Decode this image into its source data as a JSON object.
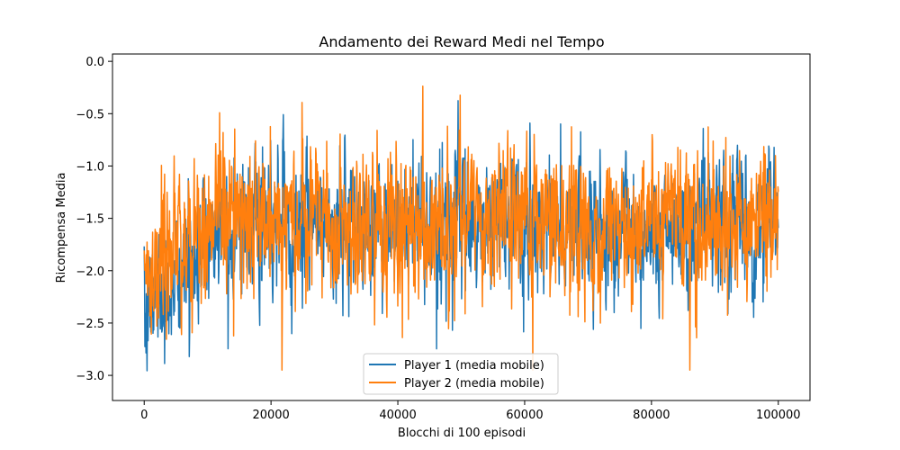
{
  "chart_data": {
    "type": "line",
    "title": "Andamento dei Reward Medi nel Tempo",
    "xlabel": "Blocchi di 100 episodi",
    "ylabel": "Ricompensa Media",
    "xlim": [
      -5000,
      105000
    ],
    "ylim": [
      -3.24,
      0.07
    ],
    "x_ticks": [
      0,
      20000,
      40000,
      60000,
      80000,
      100000
    ],
    "x_tick_labels": [
      "0",
      "20000",
      "40000",
      "60000",
      "80000",
      "100000"
    ],
    "y_ticks": [
      0.0,
      -0.5,
      -1.0,
      -1.5,
      -2.0,
      -2.5,
      -3.0
    ],
    "y_tick_labels": [
      "0.0",
      "−0.5",
      "−1.0",
      "−1.5",
      "−2.0",
      "−2.5",
      "−3.0"
    ],
    "grid": false,
    "legend_position": "lower-center",
    "series": [
      {
        "name": "Player 1 (media mobile)",
        "color": "#1f77b4",
        "x": [
          0,
          2000,
          4000,
          6000,
          8000,
          10000,
          12000,
          14000,
          16000,
          18000,
          20000,
          22000,
          24000,
          26000,
          28000,
          30000,
          32000,
          34000,
          36000,
          38000,
          40000,
          42000,
          44000,
          46000,
          48000,
          50000,
          52000,
          54000,
          56000,
          58000,
          60000,
          62000,
          64000,
          66000,
          68000,
          70000,
          72000,
          74000,
          76000,
          78000,
          80000,
          82000,
          84000,
          86000,
          88000,
          90000,
          92000,
          94000,
          96000,
          98000,
          100000
        ],
        "y": [
          -2.6,
          -2.1,
          -2.2,
          -1.9,
          -1.9,
          -1.7,
          -1.5,
          -1.6,
          -1.5,
          -1.6,
          -1.6,
          -1.5,
          -1.6,
          -1.5,
          -1.6,
          -1.7,
          -1.5,
          -1.7,
          -1.6,
          -1.5,
          -1.6,
          -1.6,
          -1.5,
          -1.6,
          -1.6,
          -1.5,
          -1.6,
          -1.6,
          -1.5,
          -1.6,
          -1.6,
          -1.6,
          -1.5,
          -1.6,
          -1.6,
          -1.5,
          -1.6,
          -1.6,
          -1.5,
          -1.6,
          -1.6,
          -1.5,
          -1.6,
          -1.6,
          -1.5,
          -1.6,
          -1.6,
          -1.5,
          -1.6,
          -1.6,
          -1.5
        ],
        "min_y": -3.07,
        "max_y": -0.18
      },
      {
        "name": "Player 2 (media mobile)",
        "color": "#ff7f0e",
        "x": [
          0,
          2000,
          4000,
          6000,
          8000,
          10000,
          12000,
          14000,
          16000,
          18000,
          20000,
          22000,
          24000,
          26000,
          28000,
          30000,
          32000,
          34000,
          36000,
          38000,
          40000,
          42000,
          44000,
          46000,
          48000,
          50000,
          52000,
          54000,
          56000,
          58000,
          60000,
          62000,
          64000,
          66000,
          68000,
          70000,
          72000,
          74000,
          76000,
          78000,
          80000,
          82000,
          84000,
          86000,
          88000,
          90000,
          92000,
          94000,
          96000,
          98000,
          100000
        ],
        "y": [
          -2.0,
          -2.0,
          -1.8,
          -1.7,
          -1.7,
          -1.6,
          -1.5,
          -1.4,
          -1.4,
          -1.5,
          -1.5,
          -1.4,
          -1.6,
          -1.4,
          -1.5,
          -1.6,
          -1.5,
          -1.6,
          -1.6,
          -1.5,
          -1.6,
          -1.5,
          -1.6,
          -1.5,
          -1.6,
          -1.5,
          -1.5,
          -1.6,
          -1.6,
          -1.5,
          -1.6,
          -1.5,
          -1.5,
          -1.6,
          -1.5,
          -1.6,
          -1.6,
          -1.5,
          -1.6,
          -1.6,
          -1.5,
          -1.6,
          -1.5,
          -1.6,
          -1.6,
          -1.5,
          -1.6,
          -1.6,
          -1.5,
          -1.6,
          -1.6
        ],
        "min_y": -2.95,
        "max_y": -0.03
      }
    ]
  }
}
